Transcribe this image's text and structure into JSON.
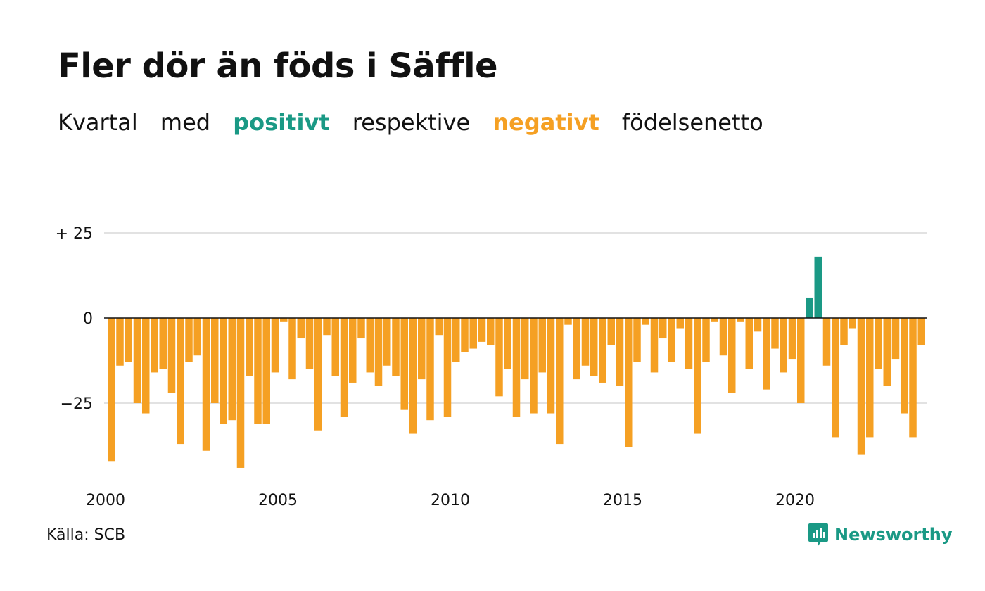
{
  "title": "Fler dör än föds i Säffle",
  "subtitle": {
    "part1": "Kvartal",
    "part2": "med",
    "positive_word": "positivt",
    "part3": "respektive",
    "negative_word": "negativt",
    "part4": "födelsenetto"
  },
  "source": "Källa: SCB",
  "brand": {
    "name": "Newsworthy",
    "icon": "newsworthy-chart-bubble-icon"
  },
  "colors": {
    "positive": "#1a9985",
    "negative": "#f5a023",
    "grid": "#e2e2e2",
    "axis": "#111111"
  },
  "chart_data": {
    "type": "bar",
    "x_start": "2000 Q1",
    "frequency": "quarterly",
    "x_tick_labels": [
      "2000",
      "2005",
      "2010",
      "2015",
      "2020"
    ],
    "y_ticks": [
      25,
      0,
      -25
    ],
    "y_tick_labels": [
      "+ 25",
      "0",
      "−25"
    ],
    "ylim": [
      -45,
      30
    ],
    "grid": true,
    "values": [
      -42,
      -14,
      -13,
      -25,
      -28,
      -16,
      -15,
      -22,
      -37,
      -13,
      -11,
      -39,
      -25,
      -31,
      -30,
      -44,
      -17,
      -31,
      -31,
      -16,
      -1,
      -18,
      -6,
      -15,
      -33,
      -5,
      -17,
      -29,
      -19,
      -6,
      -16,
      -20,
      -14,
      -17,
      -27,
      -34,
      -18,
      -30,
      -5,
      -29,
      -13,
      -10,
      -9,
      -7,
      -8,
      -23,
      -15,
      -29,
      -18,
      -28,
      -16,
      -28,
      -37,
      -2,
      -18,
      -14,
      -17,
      -19,
      -8,
      -20,
      -38,
      -13,
      -2,
      -16,
      -6,
      -13,
      -3,
      -15,
      -34,
      -13,
      -1,
      -11,
      -22,
      -1,
      -15,
      -4,
      -21,
      -9,
      -16,
      -12,
      -25,
      6,
      18,
      -14,
      -35,
      -8,
      -3,
      -40,
      -35,
      -15,
      -20,
      -12,
      -28,
      -35,
      -8
    ]
  }
}
